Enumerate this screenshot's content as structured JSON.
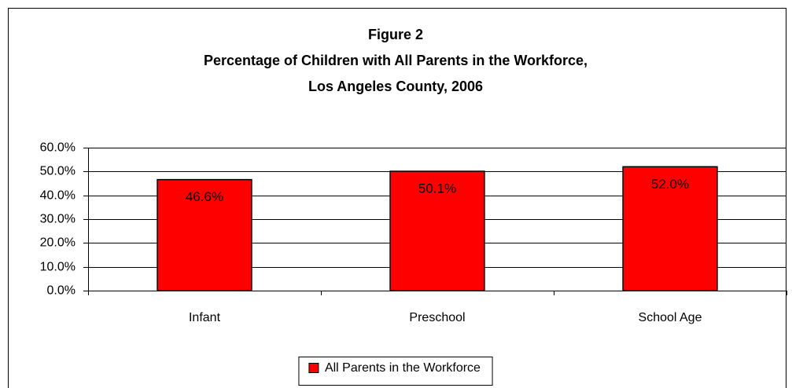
{
  "chart_data": {
    "type": "bar",
    "title": [
      "Figure 2",
      "Percentage of Children with All Parents in the Workforce,",
      "Los Angeles County, 2006"
    ],
    "categories": [
      "Infant",
      "Preschool",
      "School Age"
    ],
    "series": [
      {
        "name": "All Parents in the Workforce",
        "color": "#ff0000",
        "values": [
          46.6,
          50.1,
          52.0
        ],
        "value_labels": [
          "46.6%",
          "50.1%",
          "52.0%"
        ]
      }
    ],
    "ylim": [
      0,
      60
    ],
    "yticks": [
      {
        "value": 0,
        "label": "0.0%"
      },
      {
        "value": 10,
        "label": "10.0%"
      },
      {
        "value": 20,
        "label": "20.0%"
      },
      {
        "value": 30,
        "label": "30.0%"
      },
      {
        "value": 40,
        "label": "40.0%"
      },
      {
        "value": 50,
        "label": "50.0%"
      },
      {
        "value": 60,
        "label": "60.0%"
      }
    ],
    "grid": true,
    "legend": "bottom"
  }
}
